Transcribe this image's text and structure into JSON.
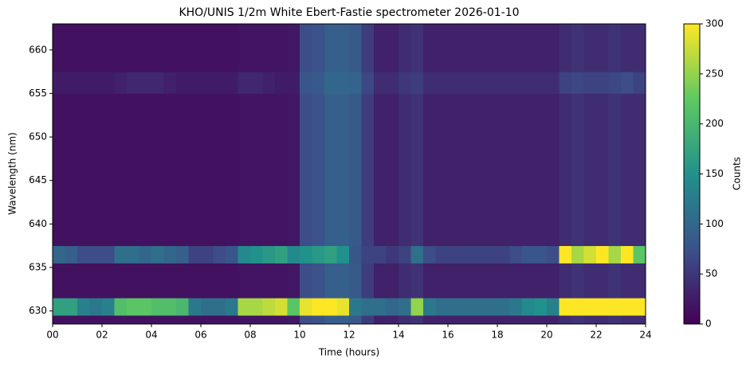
{
  "chart_data": {
    "type": "heatmap",
    "title": "KHO/UNIS 1/2m White Ebert-Fastie spectrometer 2026-01-10",
    "xlabel": "Time (hours)",
    "ylabel": "Wavelength (nm)",
    "colorbar_label": "Counts",
    "colormap": [
      "#440154",
      "#3b528b",
      "#21918c",
      "#5ec962",
      "#fde725"
    ],
    "clim": [
      0,
      300
    ],
    "cticks": [
      0,
      50,
      100,
      150,
      200,
      250,
      300
    ],
    "xlim": [
      0,
      24
    ],
    "ylim": [
      628.5,
      663
    ],
    "xticks": [
      {
        "value": 0,
        "label": "00"
      },
      {
        "value": 2,
        "label": "02"
      },
      {
        "value": 4,
        "label": "04"
      },
      {
        "value": 6,
        "label": "06"
      },
      {
        "value": 8,
        "label": "08"
      },
      {
        "value": 10,
        "label": "10"
      },
      {
        "value": 12,
        "label": "12"
      },
      {
        "value": 14,
        "label": "14"
      },
      {
        "value": 16,
        "label": "16"
      },
      {
        "value": 18,
        "label": "18"
      },
      {
        "value": 20,
        "label": "20"
      },
      {
        "value": 22,
        "label": "22"
      },
      {
        "value": 24,
        "label": "24"
      }
    ],
    "yticks": [
      630,
      635,
      640,
      645,
      650,
      655,
      660
    ],
    "x_edges": [
      0,
      0.5,
      1,
      1.5,
      2,
      2.5,
      3,
      3.5,
      4,
      4.5,
      5,
      5.5,
      6,
      6.5,
      7,
      7.5,
      8,
      8.5,
      9,
      9.5,
      10,
      10.5,
      11,
      11.5,
      12,
      12.5,
      13,
      13.5,
      14,
      14.5,
      15,
      15.5,
      16,
      16.5,
      17,
      17.5,
      18,
      18.5,
      19,
      19.5,
      20,
      20.5,
      21,
      21.5,
      22,
      22.5,
      23,
      23.5,
      24
    ],
    "y_edges": [
      628.5,
      629.5,
      631.5,
      635.5,
      637.5,
      655,
      657.5,
      663
    ],
    "z": [
      [
        15,
        15,
        15,
        15,
        15,
        15,
        15,
        15,
        15,
        15,
        15,
        15,
        15,
        15,
        15,
        18,
        18,
        18,
        18,
        20,
        70,
        75,
        90,
        90,
        85,
        55,
        30,
        30,
        40,
        45,
        30,
        30,
        30,
        30,
        30,
        30,
        30,
        30,
        30,
        30,
        30,
        40,
        45,
        40,
        40,
        45,
        40,
        40
      ],
      [
        170,
        170,
        130,
        120,
        130,
        210,
        220,
        220,
        210,
        210,
        200,
        120,
        110,
        110,
        120,
        260,
        260,
        270,
        280,
        220,
        290,
        300,
        300,
        290,
        120,
        110,
        110,
        100,
        110,
        250,
        120,
        110,
        110,
        110,
        110,
        110,
        110,
        120,
        140,
        150,
        130,
        300,
        300,
        300,
        300,
        300,
        300,
        300
      ],
      [
        15,
        15,
        15,
        15,
        15,
        15,
        15,
        15,
        15,
        15,
        15,
        15,
        15,
        15,
        15,
        18,
        18,
        18,
        18,
        20,
        70,
        75,
        90,
        90,
        85,
        55,
        30,
        30,
        40,
        45,
        30,
        30,
        30,
        30,
        30,
        30,
        30,
        30,
        30,
        30,
        30,
        40,
        45,
        40,
        40,
        45,
        40,
        40
      ],
      [
        100,
        90,
        70,
        70,
        70,
        110,
        110,
        100,
        110,
        100,
        90,
        60,
        60,
        70,
        80,
        140,
        150,
        160,
        170,
        140,
        150,
        160,
        170,
        150,
        80,
        60,
        60,
        50,
        60,
        110,
        70,
        60,
        60,
        60,
        60,
        60,
        60,
        70,
        80,
        80,
        70,
        300,
        260,
        280,
        300,
        260,
        300,
        220
      ],
      [
        15,
        15,
        15,
        15,
        15,
        15,
        15,
        15,
        15,
        15,
        15,
        15,
        15,
        15,
        15,
        18,
        18,
        18,
        18,
        20,
        70,
        75,
        90,
        90,
        85,
        55,
        30,
        30,
        40,
        45,
        30,
        30,
        30,
        30,
        30,
        30,
        30,
        30,
        30,
        30,
        30,
        40,
        45,
        40,
        40,
        45,
        40,
        40
      ],
      [
        25,
        25,
        25,
        25,
        25,
        30,
        35,
        35,
        35,
        30,
        25,
        25,
        25,
        25,
        25,
        35,
        35,
        30,
        25,
        25,
        80,
        85,
        100,
        100,
        95,
        65,
        40,
        40,
        50,
        55,
        40,
        40,
        40,
        40,
        40,
        40,
        40,
        40,
        40,
        40,
        40,
        60,
        65,
        60,
        60,
        65,
        70,
        60
      ],
      [
        15,
        15,
        15,
        15,
        15,
        15,
        15,
        15,
        15,
        15,
        15,
        15,
        15,
        15,
        15,
        18,
        18,
        18,
        18,
        20,
        70,
        75,
        90,
        90,
        85,
        55,
        30,
        30,
        40,
        45,
        30,
        30,
        30,
        30,
        30,
        30,
        30,
        30,
        30,
        30,
        30,
        40,
        45,
        40,
        40,
        45,
        40,
        40
      ]
    ]
  }
}
